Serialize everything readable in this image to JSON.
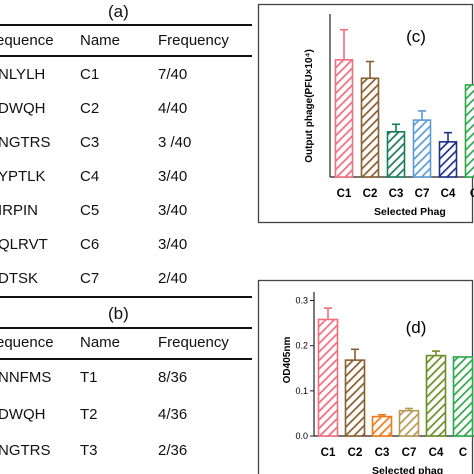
{
  "table_a": {
    "label": "(a)",
    "headers": [
      "equence",
      "Name",
      "Frequency"
    ],
    "rows": [
      [
        "NLYLH",
        "C1",
        "7/40"
      ],
      [
        "DWQH",
        "C2",
        "4/40"
      ],
      [
        "NGTRS",
        "C3",
        "3 /40"
      ],
      [
        "YPTLK",
        "C4",
        "3/40"
      ],
      [
        "IRPIN",
        "C5",
        "3/40"
      ],
      [
        "QLRVT",
        "C6",
        "3/40"
      ],
      [
        "DTSK",
        "C7",
        "2/40"
      ]
    ]
  },
  "table_b": {
    "label": "(b)",
    "headers": [
      "equence",
      "Name",
      "Frequency"
    ],
    "rows": [
      [
        "NNFMS",
        "T1",
        "8/36"
      ],
      [
        "DWQH",
        "T2",
        "4/36"
      ],
      [
        "NGTRS",
        "T3",
        "2/36"
      ]
    ]
  },
  "chart_data": [
    {
      "type": "bar",
      "panel": "(c)",
      "ylabel": "Output phage(PFU×10⁴)",
      "xlabel": "Selected  Phag",
      "categories": [
        "C1",
        "C2",
        "C3",
        "C7",
        "C4",
        "C"
      ],
      "values": [
        7.0,
        5.9,
        2.7,
        3.4,
        2.1,
        5.5
      ],
      "errors": [
        1.8,
        1.0,
        0.45,
        0.55,
        0.55,
        0
      ],
      "ylim": [
        0,
        9.5
      ],
      "colors": [
        "#f26d7d",
        "#8b5e2e",
        "#1a7a5a",
        "#5b9bd5",
        "#1f2f8a",
        "#2aa84a"
      ],
      "grid": false
    },
    {
      "type": "bar",
      "panel": "(d)",
      "ylabel": "OD405nm",
      "xlabel": "Selected  phag",
      "categories": [
        "C1",
        "C2",
        "C3",
        "C7",
        "C4",
        "C"
      ],
      "yticks": [
        "0.0",
        "0.1",
        "0.2",
        "0.3"
      ],
      "values": [
        0.258,
        0.168,
        0.043,
        0.056,
        0.178,
        0.175
      ],
      "errors": [
        0.025,
        0.024,
        0.004,
        0.005,
        0.01,
        0
      ],
      "ylim": [
        0,
        0.31
      ],
      "colors": [
        "#f26d7d",
        "#8b5e2e",
        "#f07a1a",
        "#b89a55",
        "#6b8e23",
        "#2aa84a"
      ],
      "grid": false
    }
  ]
}
